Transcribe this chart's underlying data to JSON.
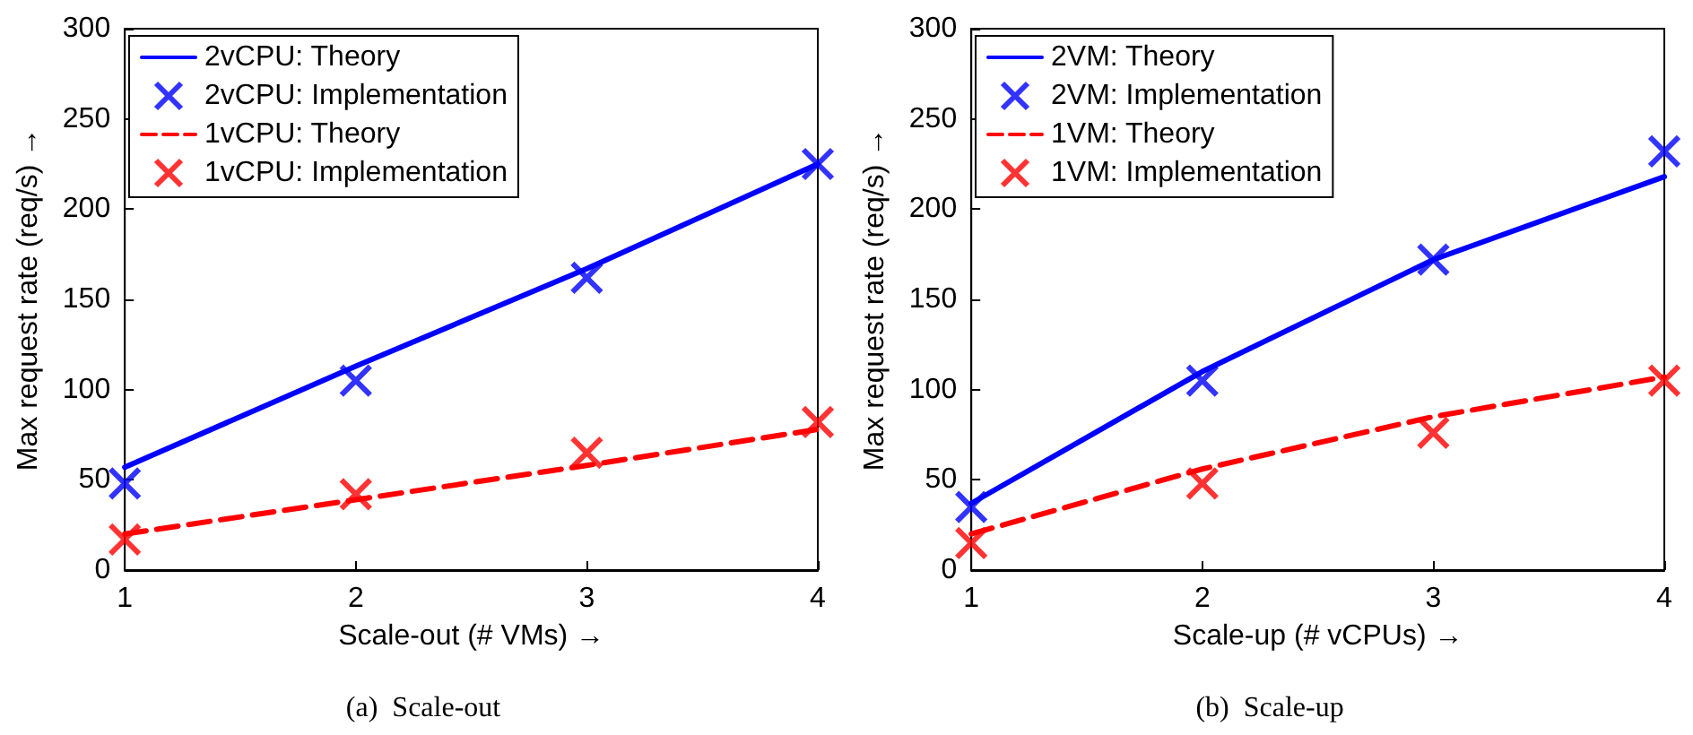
{
  "chart_data": [
    {
      "type": "line",
      "title": "(a)  Scale-out",
      "xlabel": "Scale-out (# VMs) →",
      "ylabel": "Max request rate (req/s) →",
      "xlim": [
        1,
        4
      ],
      "xticks": [
        1,
        2,
        3,
        4
      ],
      "ylim": [
        0,
        300
      ],
      "yticks": [
        0,
        50,
        100,
        150,
        200,
        250,
        300
      ],
      "grid": false,
      "legend": "top left",
      "series": [
        {
          "name": "2vCPU: Theory",
          "type": "line",
          "color": "#0000ff",
          "line_style": "solid",
          "marker": "none",
          "x": [
            1,
            2,
            3,
            4
          ],
          "values": [
            57,
            113,
            167,
            225
          ]
        },
        {
          "name": "2vCPU: Implementation",
          "type": "scatter",
          "color": "#0000ff",
          "marker": "cross",
          "x": [
            1,
            2,
            3,
            4
          ],
          "values": [
            48,
            105,
            162,
            225
          ]
        },
        {
          "name": "1vCPU: Theory",
          "type": "line",
          "color": "#ff0000",
          "line_style": "dashed",
          "marker": "none",
          "x": [
            1,
            2,
            3,
            4
          ],
          "values": [
            20,
            39,
            58,
            78
          ]
        },
        {
          "name": "1vCPU: Implementation",
          "type": "scatter",
          "color": "#ff0000",
          "marker": "cross",
          "x": [
            1,
            2,
            3,
            4
          ],
          "values": [
            17,
            42,
            65,
            82
          ]
        }
      ]
    },
    {
      "type": "line",
      "title": "(b)  Scale-up",
      "xlabel": "Scale-up (# vCPUs) →",
      "ylabel": "Max request rate (req/s) →",
      "xlim": [
        1,
        4
      ],
      "xticks": [
        1,
        2,
        3,
        4
      ],
      "ylim": [
        0,
        300
      ],
      "yticks": [
        0,
        50,
        100,
        150,
        200,
        250,
        300
      ],
      "grid": false,
      "legend": "top left",
      "series": [
        {
          "name": "2VM: Theory",
          "type": "line",
          "color": "#0000ff",
          "line_style": "solid",
          "marker": "none",
          "x": [
            1,
            2,
            3,
            4
          ],
          "values": [
            37,
            110,
            172,
            218
          ]
        },
        {
          "name": "2VM: Implementation",
          "type": "scatter",
          "color": "#0000ff",
          "marker": "cross",
          "x": [
            1,
            2,
            3,
            4
          ],
          "values": [
            35,
            105,
            172,
            232
          ]
        },
        {
          "name": "1VM: Theory",
          "type": "line",
          "color": "#ff0000",
          "line_style": "dashed",
          "marker": "none",
          "x": [
            1,
            2,
            3,
            4
          ],
          "values": [
            20,
            56,
            85,
            107
          ]
        },
        {
          "name": "1VM: Implementation",
          "type": "scatter",
          "color": "#ff0000",
          "marker": "cross",
          "x": [
            1,
            2,
            3,
            4
          ],
          "values": [
            15,
            48,
            76,
            105
          ]
        }
      ]
    }
  ]
}
